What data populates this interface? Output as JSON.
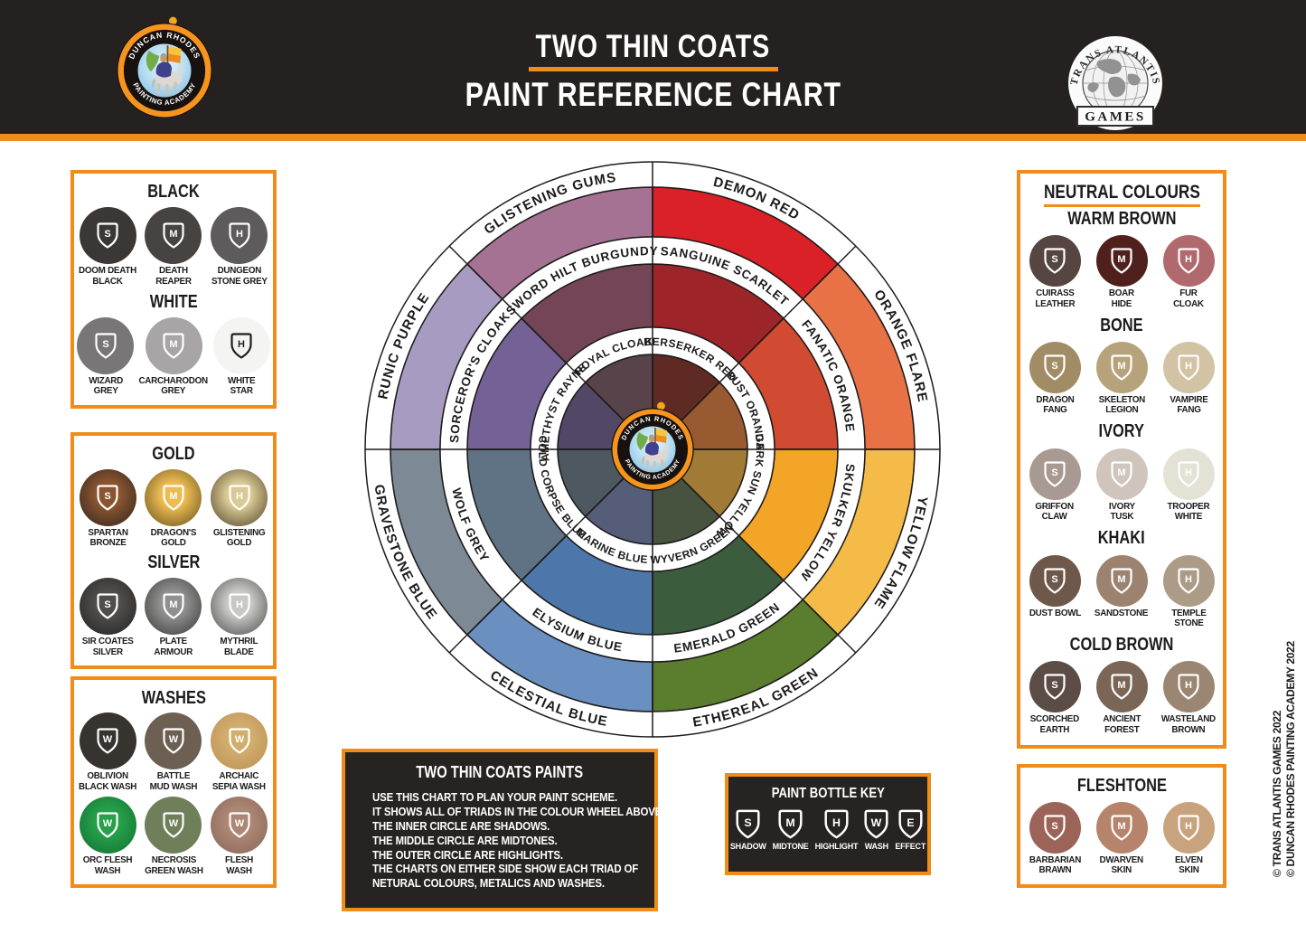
{
  "header": {
    "title_line1": "TWO THIN COATS",
    "title_line2": "PAINT REFERENCE CHART",
    "duncan_logo": {
      "arc_top": "DUNCAN RHODES",
      "arc_bottom": "PAINTING ACADEMY"
    },
    "trans_logo": {
      "arc_top": "TRANS ATLANTIS",
      "banner": "GAMES"
    }
  },
  "colors": {
    "accent_orange": "#ef8c1a",
    "header_bg": "#242120",
    "dark_box_bg": "#262321",
    "line_black": "#1d1b1b"
  },
  "left_boxes": [
    {
      "groups": [
        {
          "title": "BLACK",
          "swatches": [
            {
              "name": "DOOM DEATH BLACK",
              "lines": [
                "DOOM DEATH",
                "BLACK"
              ],
              "color": "#3b3735",
              "icon": "S"
            },
            {
              "name": "DEATH REAPER",
              "lines": [
                "DEATH",
                "REAPER"
              ],
              "color": "#474341",
              "icon": "M"
            },
            {
              "name": "DUNGEON STONE GREY",
              "lines": [
                "DUNGEON",
                "STONE GREY"
              ],
              "color": "#5d5b5b",
              "icon": "H"
            }
          ]
        },
        {
          "title": "WHITE",
          "swatches": [
            {
              "name": "WIZARD GREY",
              "lines": [
                "WIZARD",
                "GREY"
              ],
              "color": "#787676",
              "icon": "S"
            },
            {
              "name": "CARCHARODON GREY",
              "lines": [
                "CARCHARODON",
                "GREY"
              ],
              "color": "#a7a5a5",
              "icon": "M"
            },
            {
              "name": "WHITE STAR",
              "lines": [
                "WHITE",
                "STAR"
              ],
              "color": "#f4f4f3",
              "icon": "H",
              "dark_icon": true
            }
          ]
        }
      ]
    },
    {
      "groups": [
        {
          "title": "GOLD",
          "swatches": [
            {
              "name": "SPARTAN BRONZE",
              "lines": [
                "SPARTAN",
                "BRONZE"
              ],
              "gradient": [
                "#8a5530",
                "#33261e"
              ],
              "icon": "S"
            },
            {
              "name": "DRAGON'S GOLD",
              "lines": [
                "DRAGON'S",
                "GOLD"
              ],
              "gradient": [
                "#ecbb52",
                "#6b5520"
              ],
              "icon": "M"
            },
            {
              "name": "GLISTENING GOLD",
              "lines": [
                "GLISTENING",
                "GOLD"
              ],
              "gradient": [
                "#d9c994",
                "#55482e"
              ],
              "icon": "H"
            }
          ]
        },
        {
          "title": "SILVER",
          "swatches": [
            {
              "name": "SIR COATES SILVER",
              "lines": [
                "SIR COATES",
                "SILVER"
              ],
              "gradient": [
                "#504e4c",
                "#262422"
              ],
              "icon": "S"
            },
            {
              "name": "PLATE ARMOUR",
              "lines": [
                "PLATE",
                "ARMOUR"
              ],
              "gradient": [
                "#909090",
                "#3e3e3c"
              ],
              "icon": "M"
            },
            {
              "name": "MYTHRIL BLADE",
              "lines": [
                "MYTHRIL",
                "BLADE"
              ],
              "gradient": [
                "#c8c8c6",
                "#525250"
              ],
              "icon": "H"
            }
          ]
        }
      ]
    },
    {
      "groups": [
        {
          "title": "WASHES",
          "swatches": [
            {
              "name": "OBLIVION BLACK WASH",
              "lines": [
                "OBLIVION",
                "BLACK WASH"
              ],
              "color": "#37332f",
              "icon": "W"
            },
            {
              "name": "BATTLE MUD WASH",
              "lines": [
                "BATTLE",
                "MUD WASH"
              ],
              "color": "#6d6053",
              "icon": "W"
            },
            {
              "name": "ARCHAIC SEPIA WASH",
              "lines": [
                "ARCHAIC",
                "SEPIA WASH"
              ],
              "gradient": [
                "#d2ae6e",
                "#bb9256"
              ],
              "icon": "W"
            },
            {
              "name": "ORC FLESH WASH",
              "lines": [
                "ORC FLESH",
                "WASH"
              ],
              "gradient": [
                "#27a04a",
                "#117231"
              ],
              "icon": "W"
            },
            {
              "name": "NECROSIS GREEN WASH",
              "lines": [
                "NECROSIS",
                "GREEN WASH"
              ],
              "color": "#6e7f5a",
              "icon": "W"
            },
            {
              "name": "FLESH WASH",
              "lines": [
                "FLESH",
                "WASH"
              ],
              "gradient": [
                "#ad8775",
                "#8a685a"
              ],
              "icon": "W"
            }
          ]
        }
      ]
    }
  ],
  "right_boxes": [
    {
      "box_title": "NEUTRAL COLOURS",
      "groups": [
        {
          "title": "WARM BROWN",
          "swatches": [
            {
              "name": "CUIRASS LEATHER",
              "lines": [
                "CUIRASS",
                "LEATHER"
              ],
              "color": "#564540",
              "icon": "S"
            },
            {
              "name": "BOAR HIDE",
              "lines": [
                "BOAR",
                "HIDE"
              ],
              "color": "#4f201c",
              "icon": "M"
            },
            {
              "name": "FUR CLOAK",
              "lines": [
                "FUR",
                "CLOAK"
              ],
              "color": "#b0696d",
              "icon": "H"
            }
          ]
        },
        {
          "title": "BONE",
          "swatches": [
            {
              "name": "DRAGON FANG",
              "lines": [
                "DRAGON",
                "FANG"
              ],
              "color": "#a18c66",
              "icon": "S"
            },
            {
              "name": "SKELETON LEGION",
              "lines": [
                "SKELETON",
                "LEGION"
              ],
              "color": "#b7a37b",
              "icon": "M"
            },
            {
              "name": "VAMPIRE FANG",
              "lines": [
                "VAMPIRE",
                "FANG"
              ],
              "color": "#d2c3a4",
              "icon": "H"
            }
          ]
        },
        {
          "title": "IVORY",
          "swatches": [
            {
              "name": "GRIFFON CLAW",
              "lines": [
                "GRIFFON",
                "CLAW"
              ],
              "color": "#a89a92",
              "icon": "S"
            },
            {
              "name": "IVORY TUSK",
              "lines": [
                "IVORY",
                "TUSK"
              ],
              "color": "#d0c5bd",
              "icon": "M"
            },
            {
              "name": "TROOPER WHITE",
              "lines": [
                "TROOPER",
                "WHITE"
              ],
              "color": "#e4e2d5",
              "icon": "H"
            }
          ]
        },
        {
          "title": "KHAKI",
          "swatches": [
            {
              "name": "DUST BOWL",
              "lines": [
                "DUST BOWL"
              ],
              "color": "#6e584a",
              "icon": "S"
            },
            {
              "name": "SANDSTONE",
              "lines": [
                "SANDSTONE"
              ],
              "color": "#9b8370",
              "icon": "M"
            },
            {
              "name": "TEMPLE STONE",
              "lines": [
                "TEMPLE",
                "STONE"
              ],
              "color": "#ac9b87",
              "icon": "H"
            }
          ]
        },
        {
          "title": "COLD BROWN",
          "swatches": [
            {
              "name": "SCORCHED EARTH",
              "lines": [
                "SCORCHED",
                "EARTH"
              ],
              "color": "#5c4c46",
              "icon": "S"
            },
            {
              "name": "ANCIENT FOREST",
              "lines": [
                "ANCIENT",
                "FOREST"
              ],
              "color": "#7b6557",
              "icon": "M"
            },
            {
              "name": "WASTELAND BROWN",
              "lines": [
                "WASTELAND",
                "BROWN"
              ],
              "color": "#9b8673",
              "icon": "H"
            }
          ]
        }
      ]
    },
    {
      "groups": [
        {
          "title": "FLESHTONE",
          "swatches": [
            {
              "name": "BARBARIAN BRAWN",
              "lines": [
                "BARBARIAN",
                "BRAWN"
              ],
              "color": "#9c6458",
              "icon": "S"
            },
            {
              "name": "DWARVEN SKIN",
              "lines": [
                "DWARVEN",
                "SKIN"
              ],
              "color": "#b5846b",
              "icon": "M"
            },
            {
              "name": "ELVEN SKIN",
              "lines": [
                "ELVEN",
                "SKIN"
              ],
              "color": "#c9a37e",
              "icon": "H"
            }
          ]
        }
      ]
    }
  ],
  "wheel": {
    "center_logo": {
      "arc_top": "DUNCAN RHODES",
      "arc_bottom": "PAINTING ACADEMY"
    },
    "sectors": [
      {
        "name": "red",
        "flipped": false,
        "highlight": {
          "label": "DEMON RED",
          "color": "#d92127"
        },
        "midtone": {
          "label": "SANGUINE SCARLET",
          "color": "#9d2428"
        },
        "shadow": {
          "label": "BERSERKER RED",
          "color": "#5e2a23"
        }
      },
      {
        "name": "orange",
        "flipped": false,
        "highlight": {
          "label": "ORANGE FLARE",
          "color": "#e87146"
        },
        "midtone": {
          "label": "FANATIC ORANGE",
          "color": "#d04b32"
        },
        "shadow": {
          "label": "RUST ORANGE",
          "color": "#9a5a31"
        }
      },
      {
        "name": "yellow",
        "flipped": false,
        "highlight": {
          "label": "YELLOW FLAME",
          "color": "#f4bb49"
        },
        "midtone": {
          "label": "SKULKER YELLOW",
          "color": "#f2a527"
        },
        "shadow": {
          "label": "DARK SUN YELLOW",
          "color": "#a17a35"
        }
      },
      {
        "name": "green",
        "flipped": true,
        "highlight": {
          "label": "ETHEREAL GREEN",
          "color": "#5a7d2e"
        },
        "midtone": {
          "label": "EMERALD GREEN",
          "color": "#3c5c3e"
        },
        "shadow": {
          "label": "WYVERN GREEN",
          "color": "#47523f"
        }
      },
      {
        "name": "blue",
        "flipped": true,
        "highlight": {
          "label": "CELESTIAL BLUE",
          "color": "#6a90c2"
        },
        "midtone": {
          "label": "ELYSIUM BLUE",
          "color": "#4d76ab"
        },
        "shadow": {
          "label": "MARINE BLUE",
          "color": "#565d78"
        }
      },
      {
        "name": "grey-blue",
        "flipped": true,
        "highlight": {
          "label": "GRAVESTONE BLUE",
          "color": "#7d8995"
        },
        "midtone": {
          "label": "WOLF GREY",
          "color": "#5f7384"
        },
        "shadow": {
          "label": "COLD CORPSE BLUE",
          "color": "#4e5861"
        }
      },
      {
        "name": "purple",
        "flipped": false,
        "highlight": {
          "label": "RUNIC PURPLE",
          "color": "#a89bc2"
        },
        "midtone": {
          "label": "SORCEROR'S CLOAK",
          "color": "#746195"
        },
        "shadow": {
          "label": "AMETHYST RAYNE",
          "color": "#534767"
        }
      },
      {
        "name": "burgundy",
        "flipped": false,
        "highlight": {
          "label": "GLISTENING GUMS",
          "color": "#a57293"
        },
        "midtone": {
          "label": "SWORD HILT BURGUNDY",
          "color": "#744556"
        },
        "shadow": {
          "label": "ROYAL CLOAK",
          "color": "#574349"
        }
      }
    ]
  },
  "info_box": {
    "title": "TWO THIN COATS PAINTS",
    "lines": [
      "USE THIS CHART TO PLAN YOUR PAINT SCHEME.",
      "IT SHOWS ALL OF TRIADS IN THE COLOUR WHEEL ABOVE.",
      "THE INNER CIRCLE ARE SHADOWS.",
      "THE MIDDLE CIRCLE ARE MIDTONES.",
      "THE OUTER CIRCLE ARE HIGHLIGHTS.",
      "THE CHARTS ON EITHER SIDE SHOW EACH TRIAD OF",
      "NETURAL COLOURS, METALICS AND WASHES."
    ]
  },
  "bottle_key": {
    "title": "PAINT BOTTLE KEY",
    "items": [
      {
        "letter": "S",
        "label": "SHADOW"
      },
      {
        "letter": "M",
        "label": "MIDTONE"
      },
      {
        "letter": "H",
        "label": "HIGHLIGHT"
      },
      {
        "letter": "W",
        "label": "WASH"
      },
      {
        "letter": "E",
        "label": "EFFECT"
      }
    ]
  },
  "copyright_lines": [
    "© TRANS ATLANTIS GAMES 2022",
    "© DUNCAN RHODES PAINTING ACADEMY 2022"
  ]
}
